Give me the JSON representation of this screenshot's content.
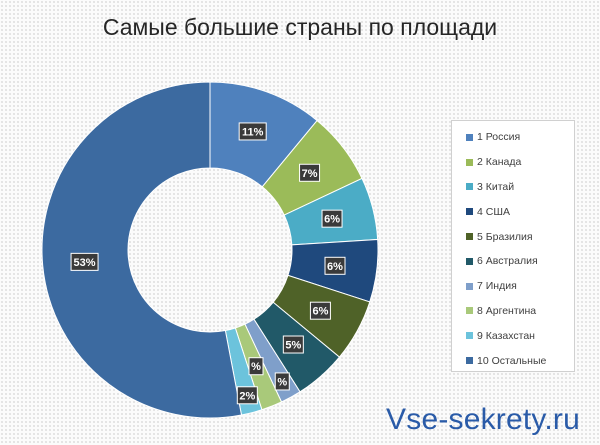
{
  "chart_data": {
    "type": "pie",
    "variant": "donut",
    "title": "Самые большие страны по площади",
    "categories": [
      "1 Россия",
      "2 Канада",
      "3 Китай",
      "4 США",
      "5 Бразилия",
      "6 Австралия",
      "7 Индия",
      "8 Аргентина",
      "9 Казахстан",
      "10 Остальные"
    ],
    "values": [
      11,
      7,
      6,
      6,
      6,
      5,
      2,
      2,
      2,
      53
    ],
    "data_labels": [
      "11%",
      "7%",
      "6%",
      "6%",
      "6%",
      "5%",
      "%",
      "%",
      "2%",
      "53%"
    ],
    "colors": [
      "#4f81bd",
      "#9bbb59",
      "#4bacc6",
      "#1f497d",
      "#4f6228",
      "#215968",
      "#7f9fca",
      "#a9c97a",
      "#6cc3dc",
      "#3c6aa0"
    ],
    "legend_position": "right"
  },
  "watermark": "Vse-sekrety.ru"
}
